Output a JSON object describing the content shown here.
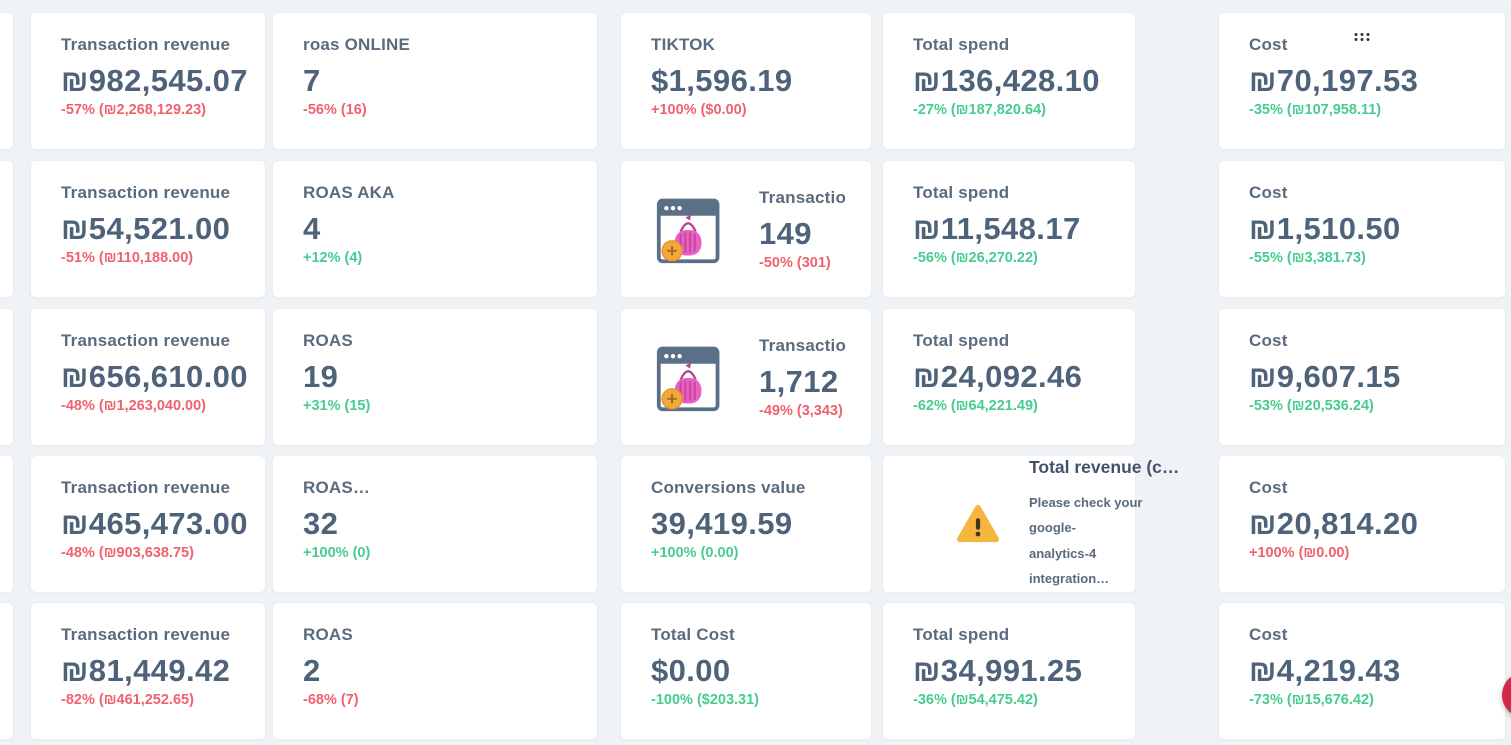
{
  "theme": {
    "bg": "#f0f3f6",
    "card": "#ffffff",
    "title": "#5b6b7e",
    "value": "#4e6379",
    "red": "#f0616e",
    "green": "#47cb90",
    "chat": "#d2294b",
    "warn": "#f5b63e"
  },
  "left_partial_cards": 5,
  "icons": {
    "drag_handle": "drag-dots-icon",
    "transactions_widget": "cart-browser-icon",
    "warning": "warning-triangle-icon",
    "chat": "chat-launcher-button"
  },
  "cards": [
    {
      "row": 0,
      "col": 0,
      "type": "metric",
      "title": "Transaction revenue",
      "value": "₪982,545.07",
      "change": "-57% (₪2,268,129.23)",
      "tone": "red"
    },
    {
      "row": 0,
      "col": 1,
      "type": "metric",
      "title": "roas ONLINE",
      "value": "7",
      "change": "-56% (16)",
      "tone": "red"
    },
    {
      "row": 0,
      "col": 2,
      "type": "metric",
      "title": "TIKTOK",
      "value": "$1,596.19",
      "change": "+100% ($0.00)",
      "tone": "red"
    },
    {
      "row": 0,
      "col": 3,
      "type": "metric",
      "title": "Total spend",
      "value": "₪136,428.10",
      "change": "-27% (₪187,820.64)",
      "tone": "green"
    },
    {
      "row": 0,
      "col": 4,
      "type": "metric",
      "title": "Cost",
      "value": "₪70,197.53",
      "change": "-35% (₪107,958.11)",
      "tone": "green",
      "drag_handle": true
    },
    {
      "row": 1,
      "col": 0,
      "type": "metric",
      "title": "Transaction revenue",
      "value": "₪54,521.00",
      "change": "-51% (₪110,188.00)",
      "tone": "red"
    },
    {
      "row": 1,
      "col": 1,
      "type": "metric",
      "title": "ROAS AKA",
      "value": "4",
      "change": "+12% (4)",
      "tone": "green"
    },
    {
      "row": 1,
      "col": 2,
      "type": "icon",
      "title": "Transactio…",
      "value": "149",
      "change": "-50% (301)",
      "tone": "red"
    },
    {
      "row": 1,
      "col": 3,
      "type": "metric",
      "title": "Total spend",
      "value": "₪11,548.17",
      "change": "-56% (₪26,270.22)",
      "tone": "green"
    },
    {
      "row": 1,
      "col": 4,
      "type": "metric",
      "title": "Cost",
      "value": "₪1,510.50",
      "change": "-55% (₪3,381.73)",
      "tone": "green"
    },
    {
      "row": 2,
      "col": 0,
      "type": "metric",
      "title": "Transaction revenue",
      "value": "₪656,610.00",
      "change": "-48% (₪1,263,040.00)",
      "tone": "red"
    },
    {
      "row": 2,
      "col": 1,
      "type": "metric",
      "title": "ROAS",
      "value": "19",
      "change": "+31% (15)",
      "tone": "green"
    },
    {
      "row": 2,
      "col": 2,
      "type": "icon",
      "title": "Transactio…",
      "value": "1,712",
      "change": "-49% (3,343)",
      "tone": "red"
    },
    {
      "row": 2,
      "col": 3,
      "type": "metric",
      "title": "Total spend",
      "value": "₪24,092.46",
      "change": "-62% (₪64,221.49)",
      "tone": "green"
    },
    {
      "row": 2,
      "col": 4,
      "type": "metric",
      "title": "Cost",
      "value": "₪9,607.15",
      "change": "-53% (₪20,536.24)",
      "tone": "green"
    },
    {
      "row": 3,
      "col": 0,
      "type": "metric",
      "title": "Transaction revenue",
      "value": "₪465,473.00",
      "change": "-48% (₪903,638.75)",
      "tone": "red"
    },
    {
      "row": 3,
      "col": 1,
      "type": "metric",
      "title": "ROAS…",
      "value": "32",
      "change": "+100% (0)",
      "tone": "green"
    },
    {
      "row": 3,
      "col": 2,
      "type": "metric",
      "title": "Conversions value",
      "value": "39,419.59",
      "change": "+100% (0.00)",
      "tone": "green"
    },
    {
      "row": 3,
      "col": 3,
      "type": "warning",
      "title": "Total revenue (c…",
      "message_line1": "Please check your google-",
      "message_line2": "analytics-4 integration…"
    },
    {
      "row": 3,
      "col": 4,
      "type": "metric",
      "title": "Cost",
      "value": "₪20,814.20",
      "change": "+100% (₪0.00)",
      "tone": "red"
    },
    {
      "row": 4,
      "col": 0,
      "type": "metric",
      "title": "Transaction revenue",
      "value": "₪81,449.42",
      "change": "-82% (₪461,252.65)",
      "tone": "red"
    },
    {
      "row": 4,
      "col": 1,
      "type": "metric",
      "title": "ROAS",
      "value": "2",
      "change": "-68% (7)",
      "tone": "red"
    },
    {
      "row": 4,
      "col": 2,
      "type": "metric",
      "title": "Total Cost",
      "value": "$0.00",
      "change": "-100% ($203.31)",
      "tone": "green"
    },
    {
      "row": 4,
      "col": 3,
      "type": "metric",
      "title": "Total spend",
      "value": "₪34,991.25",
      "change": "-36% (₪54,475.42)",
      "tone": "green"
    },
    {
      "row": 4,
      "col": 4,
      "type": "metric",
      "title": "Cost",
      "value": "₪4,219.43",
      "change": "-73% (₪15,676.42)",
      "tone": "green"
    }
  ]
}
